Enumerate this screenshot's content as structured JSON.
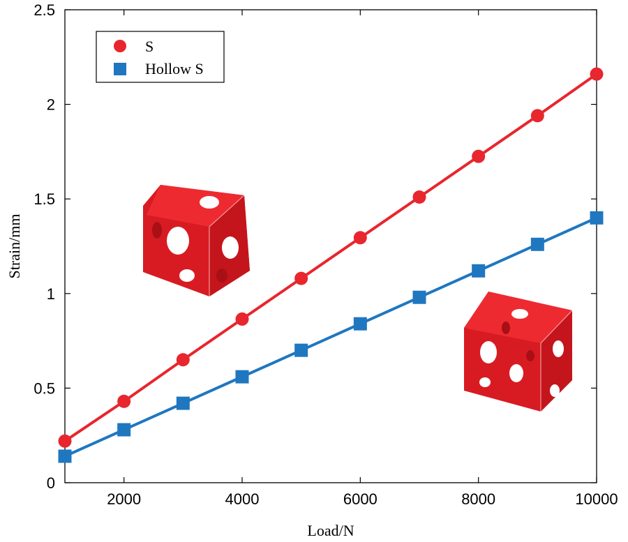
{
  "chart_data": {
    "type": "line",
    "xlabel": "Load/N",
    "ylabel": "Strain/mm",
    "xlim": [
      1000,
      10000
    ],
    "ylim": [
      0,
      2.5
    ],
    "xticks": [
      2000,
      4000,
      6000,
      8000,
      10000
    ],
    "yticks": [
      0,
      0.5,
      1,
      1.5,
      2,
      2.5
    ],
    "xtick_labels": [
      "2000",
      "4000",
      "6000",
      "8000",
      "10000"
    ],
    "ytick_labels": [
      "0",
      "0.5",
      "1",
      "1.5",
      "2",
      "2.5"
    ],
    "x": [
      1000,
      2000,
      3000,
      4000,
      5000,
      6000,
      7000,
      8000,
      9000,
      10000
    ],
    "series": [
      {
        "name": "S",
        "marker": "circle",
        "color": "#e8262d",
        "values": [
          0.22,
          0.43,
          0.65,
          0.865,
          1.08,
          1.295,
          1.51,
          1.725,
          1.94,
          2.16
        ]
      },
      {
        "name": "Hollow S",
        "marker": "square",
        "color": "#1f77c0",
        "values": [
          0.14,
          0.28,
          0.42,
          0.56,
          0.7,
          0.84,
          0.98,
          1.12,
          1.26,
          1.4
        ]
      }
    ],
    "legend_position": "top-left",
    "grid": false,
    "insets": [
      {
        "name": "solid-gyroid-lattice-cube-image",
        "color": "#e01a22"
      },
      {
        "name": "hollow-gyroid-lattice-cube-image",
        "color": "#e01a22"
      }
    ]
  }
}
